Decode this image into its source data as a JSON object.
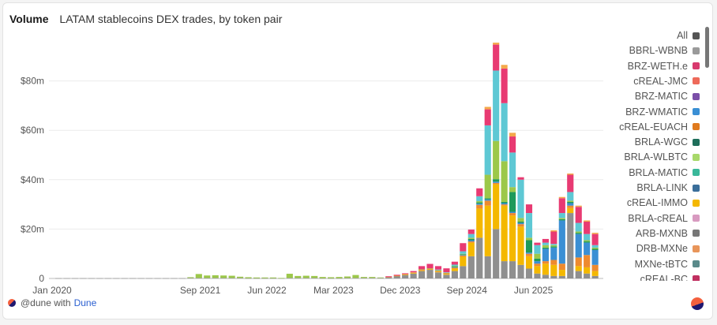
{
  "header": {
    "title": "Volume",
    "subtitle": "LATAM stablecoins DEX trades, by token pair"
  },
  "legend": [
    {
      "label": "All",
      "color": "#555555"
    },
    {
      "label": "BBRL-WBNB",
      "color": "#9a9a9a"
    },
    {
      "label": "BRZ-WETH.e",
      "color": "#d83a6e"
    },
    {
      "label": "cREAL-JMC",
      "color": "#ee6a5a"
    },
    {
      "label": "BRZ-MATIC",
      "color": "#7b4fa8"
    },
    {
      "label": "BRZ-WMATIC",
      "color": "#3a8fd4"
    },
    {
      "label": "cREAL-EUACH",
      "color": "#e07a1e"
    },
    {
      "label": "BRLA-WGC",
      "color": "#1e6e5a"
    },
    {
      "label": "BRLA-WLBTC",
      "color": "#a8d86a"
    },
    {
      "label": "BRLA-MATIC",
      "color": "#3ab89a"
    },
    {
      "label": "BRLA-LINK",
      "color": "#3a6e9a"
    },
    {
      "label": "cREAL-IMMO",
      "color": "#f4b800"
    },
    {
      "label": "BRLA-cREAL",
      "color": "#d89ac0"
    },
    {
      "label": "ARB-MXNB",
      "color": "#777777"
    },
    {
      "label": "DRB-MXNe",
      "color": "#e8955a"
    },
    {
      "label": "MXNe-tBTC",
      "color": "#5a8a8a"
    },
    {
      "label": "cREAL-BC",
      "color": "#c03060"
    }
  ],
  "footer": {
    "text": "@dune with",
    "brand": "Dune"
  },
  "chart_data": {
    "type": "bar",
    "stacked": true,
    "x_ticks": [
      "Jan 2020",
      "Sep 2021",
      "Jun 2022",
      "Mar 2023",
      "Dec 2023",
      "Sep 2024",
      "Jun 2025"
    ],
    "y_ticks": [
      "0",
      "$20m",
      "$40m",
      "$60m",
      "$80m"
    ],
    "ylim": [
      0,
      100
    ],
    "y_unit": "millions USD",
    "grid": true,
    "legend_position": "right",
    "segment_colors": [
      "#8f8f8f",
      "#f4b800",
      "#ee8a2e",
      "#3a8fd4",
      "#1e9a5a",
      "#9cc84a",
      "#5ec8d4",
      "#e83a72",
      "#f4a84a",
      "#8a4aa8"
    ],
    "columns": [
      {
        "x": "2020-09",
        "segments": [
          0.1
        ]
      },
      {
        "x": "2020-10",
        "segments": [
          0.1
        ]
      },
      {
        "x": "2020-11",
        "segments": [
          0.1
        ]
      },
      {
        "x": "2020-12",
        "segments": [
          0.1
        ]
      },
      {
        "x": "2021-01",
        "segments": [
          0.1
        ]
      },
      {
        "x": "2021-02",
        "segments": [
          0.1
        ]
      },
      {
        "x": "2021-03",
        "segments": [
          0.1
        ]
      },
      {
        "x": "2021-04",
        "segments": [
          0.1
        ]
      },
      {
        "x": "2021-05",
        "segments": [
          0.1
        ]
      },
      {
        "x": "2021-06",
        "segments": [
          0.1
        ]
      },
      {
        "x": "2021-07",
        "segments": [
          0.1
        ]
      },
      {
        "x": "2021-08",
        "segments": [
          0.1
        ]
      },
      {
        "x": "2021-09",
        "segments": [
          0.1
        ]
      },
      {
        "x": "2021-10",
        "segments": [
          0.1
        ]
      },
      {
        "x": "2021-11",
        "segments": [
          0.1
        ]
      },
      {
        "x": "2021-12",
        "segments": [
          0.1
        ]
      },
      {
        "x": "2022-01",
        "segments": [
          0.2,
          0,
          0,
          0,
          0,
          0.3
        ]
      },
      {
        "x": "2022-02",
        "segments": [
          0.2,
          0,
          0,
          0,
          0,
          1.6
        ]
      },
      {
        "x": "2022-03",
        "segments": [
          0.2,
          0,
          0,
          0,
          0,
          1.0
        ]
      },
      {
        "x": "2022-04",
        "segments": [
          0.2,
          0,
          0,
          0,
          0,
          1.1
        ]
      },
      {
        "x": "2022-05",
        "segments": [
          0.2,
          0,
          0,
          0,
          0,
          1.0
        ]
      },
      {
        "x": "2022-06",
        "segments": [
          0.2,
          0,
          0,
          0,
          0,
          0.9
        ]
      },
      {
        "x": "2022-07",
        "segments": [
          0.2,
          0,
          0,
          0,
          0,
          0.5
        ]
      },
      {
        "x": "2022-08",
        "segments": [
          0.1,
          0,
          0,
          0,
          0,
          0.4
        ]
      },
      {
        "x": "2022-09",
        "segments": [
          0.1,
          0,
          0,
          0,
          0,
          0.3
        ]
      },
      {
        "x": "2022-10",
        "segments": [
          0.1,
          0,
          0,
          0,
          0,
          0.3
        ]
      },
      {
        "x": "2022-11",
        "segments": [
          0.1,
          0,
          0,
          0,
          0,
          0.3
        ]
      },
      {
        "x": "2022-12",
        "segments": [
          0.1,
          0,
          0,
          0,
          0,
          0.1
        ]
      },
      {
        "x": "2023-01",
        "segments": [
          0.2,
          0,
          0,
          0,
          0,
          1.7
        ]
      },
      {
        "x": "2023-02",
        "segments": [
          0.2,
          0,
          0,
          0,
          0,
          0.8
        ]
      },
      {
        "x": "2023-03",
        "segments": [
          0.2,
          0,
          0,
          0,
          0,
          0.9
        ]
      },
      {
        "x": "2023-04",
        "segments": [
          0.2,
          0,
          0,
          0,
          0,
          0.8
        ]
      },
      {
        "x": "2023-05",
        "segments": [
          0.1,
          0,
          0,
          0,
          0,
          0.5
        ]
      },
      {
        "x": "2023-06",
        "segments": [
          0.1,
          0,
          0,
          0,
          0,
          0.4
        ]
      },
      {
        "x": "2023-07",
        "segments": [
          0.1,
          0,
          0,
          0,
          0,
          0.5
        ]
      },
      {
        "x": "2023-08",
        "segments": [
          0.2,
          0,
          0,
          0,
          0,
          0.6
        ]
      },
      {
        "x": "2023-09",
        "segments": [
          0.2,
          0,
          0,
          0,
          0,
          1.2
        ]
      },
      {
        "x": "2023-10",
        "segments": [
          0.2,
          0,
          0,
          0,
          0,
          0.4
        ]
      },
      {
        "x": "2023-11",
        "segments": [
          0.2,
          0,
          0,
          0,
          0,
          0.4
        ]
      },
      {
        "x": "2023-12",
        "segments": [
          0.2,
          0,
          0,
          0,
          0,
          0.2
        ]
      },
      {
        "x": "2024-01",
        "segments": [
          0.5,
          0,
          0.1,
          0,
          0,
          0,
          0,
          0.3
        ]
      },
      {
        "x": "2024-02",
        "segments": [
          1.0,
          0.1,
          0,
          0,
          0,
          0,
          0,
          0.4
        ]
      },
      {
        "x": "2024-03",
        "segments": [
          1.4,
          0.2,
          0.2,
          0,
          0,
          0,
          0,
          0.3
        ]
      },
      {
        "x": "2024-04",
        "segments": [
          2.0,
          0.3,
          0.2,
          0,
          0,
          0,
          0,
          0.5
        ]
      },
      {
        "x": "2024-05",
        "segments": [
          3.0,
          0.3,
          0.3,
          0,
          0,
          0.1,
          0,
          1.3
        ]
      },
      {
        "x": "2024-06",
        "segments": [
          3.5,
          0.2,
          0.3,
          0,
          0,
          0.1,
          0,
          1.8
        ]
      },
      {
        "x": "2024-07",
        "segments": [
          2.5,
          0.3,
          0.4,
          0,
          0,
          0.1,
          0.3,
          1.4
        ]
      },
      {
        "x": "2024-08",
        "segments": [
          1.5,
          0.3,
          0.4,
          0,
          0,
          0.1,
          0.2,
          1.6
        ]
      },
      {
        "x": "2024-09",
        "segments": [
          3.0,
          1.0,
          0.4,
          0.2,
          0.3,
          0.2,
          0.5,
          1.2
        ]
      },
      {
        "x": "2024-10",
        "segments": [
          5.0,
          3.8,
          0.5,
          0.2,
          0.3,
          0.2,
          1.0,
          3.3
        ]
      },
      {
        "x": "2024-11",
        "segments": [
          9.0,
          5.5,
          0.5,
          0.5,
          0.5,
          0.5,
          1.5,
          1.8
        ]
      },
      {
        "x": "2024-12",
        "segments": [
          16.5,
          11.8,
          1.5,
          0.5,
          0.5,
          0.5,
          2.0,
          3.2
        ]
      },
      {
        "x": "2025-01",
        "segments": [
          9.0,
          20.5,
          2.0,
          0.5,
          0.5,
          9.5,
          20.0,
          6.5,
          1.0
        ]
      },
      {
        "x": "2025-02",
        "segments": [
          20.0,
          18.2,
          0.5,
          0.5,
          1.0,
          15.5,
          28.5,
          10.5,
          0.8
        ]
      },
      {
        "x": "2025-03",
        "segments": [
          7.0,
          22.5,
          0.5,
          0.5,
          0.5,
          16.5,
          23.5,
          14.0,
          1.5
        ]
      },
      {
        "x": "2025-04",
        "segments": [
          7.0,
          18.5,
          1.0,
          0.5,
          8.0,
          2.0,
          14.0,
          6.5,
          1.5
        ]
      },
      {
        "x": "2025-05",
        "segments": [
          5.5,
          15.5,
          1.0,
          0.5,
          0.5,
          1.5,
          15.5,
          1.0
        ]
      },
      {
        "x": "2025-06",
        "segments": [
          4.0,
          5.0,
          1.0,
          0.5,
          5.0,
          1.0,
          10.0,
          3.5
        ]
      },
      {
        "x": "2025-07",
        "segments": [
          2.0,
          3.0,
          1.0,
          1.0,
          1.0,
          2.0,
          3.5,
          1.0
        ]
      },
      {
        "x": "2025-08",
        "segments": [
          1.5,
          4.5,
          1.0,
          5.0,
          0.5,
          1.0,
          1.0,
          1.5
        ]
      },
      {
        "x": "2025-09",
        "segments": [
          1.0,
          4.5,
          2.0,
          5.0,
          0.5,
          0.5,
          0.5,
          5.0,
          0.5
        ]
      },
      {
        "x": "2025-10",
        "segments": [
          1.0,
          2.5,
          2.5,
          17.5,
          0.5,
          0.5,
          2.0,
          6.0,
          0.5
        ]
      },
      {
        "x": "2025-11",
        "segments": [
          26.5,
          2.0,
          1.0,
          1.0,
          0.5,
          0.5,
          3.5,
          7.0,
          0.5
        ]
      },
      {
        "x": "2025-12",
        "segments": [
          3.0,
          2.0,
          3.5,
          9.5,
          0.5,
          0.5,
          3.5,
          6.5,
          0.5
        ]
      },
      {
        "x": "2026-01",
        "segments": [
          2.0,
          2.5,
          5.0,
          5.0,
          0.5,
          0.5,
          2.5,
          5.0,
          0.5
        ]
      },
      {
        "x": "2026-02",
        "segments": [
          1.0,
          2.0,
          2.5,
          6.0,
          0.5,
          0.5,
          1.0,
          4.5,
          0.5
        ]
      }
    ]
  }
}
